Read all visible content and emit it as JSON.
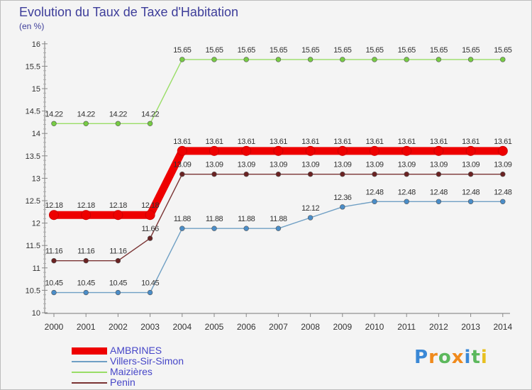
{
  "title": "Evolution du Taux de Taxe d'Habitation",
  "subtitle": "(en %)",
  "chart_data": {
    "type": "line",
    "x": [
      "2000",
      "2001",
      "2002",
      "2003",
      "2004",
      "2005",
      "2006",
      "2007",
      "2008",
      "2009",
      "2010",
      "2011",
      "2012",
      "2013",
      "2014"
    ],
    "y_ticks": [
      "10",
      "10.5",
      "11",
      "11.5",
      "12",
      "12.5",
      "13",
      "13.5",
      "14",
      "14.5",
      "15",
      "15.5",
      "16"
    ],
    "ylim": [
      10,
      16
    ],
    "grid": false,
    "legend_position": "bottom-left",
    "series": [
      {
        "name": "AMBRINES",
        "color": "#ee0000",
        "emphasis": true,
        "values": [
          12.18,
          12.18,
          12.18,
          12.18,
          13.61,
          13.61,
          13.61,
          13.61,
          13.61,
          13.61,
          13.61,
          13.61,
          13.61,
          13.61,
          13.61
        ],
        "labels": [
          "12.18",
          "12.18",
          "12.18",
          "12.18",
          "13.61",
          "13.61",
          "13.61",
          "13.61",
          "13.61",
          "13.61",
          "13.61",
          "13.61",
          "13.61",
          "13.61",
          "13.61"
        ]
      },
      {
        "name": "Villers-Sir-Simon",
        "color": "#6f9fc4",
        "marker": "#4a8dc8",
        "values": [
          10.45,
          10.45,
          10.45,
          10.45,
          11.88,
          11.88,
          11.88,
          11.88,
          12.12,
          12.36,
          12.48,
          12.48,
          12.48,
          12.48,
          12.48
        ],
        "labels": [
          "10.45",
          "10.45",
          "10.45",
          "10.45",
          "11.88",
          "11.88",
          "11.88",
          "11.88",
          "12.12",
          "12.36",
          "12.48",
          "12.48",
          "12.48",
          "12.48",
          "12.48"
        ]
      },
      {
        "name": "Maizières",
        "color": "#99dd66",
        "marker": "#77cc44",
        "values": [
          14.22,
          14.22,
          14.22,
          14.22,
          15.65,
          15.65,
          15.65,
          15.65,
          15.65,
          15.65,
          15.65,
          15.65,
          15.65,
          15.65,
          15.65
        ],
        "labels": [
          "14.22",
          "14.22",
          "14.22",
          "14.22",
          "15.65",
          "15.65",
          "15.65",
          "15.65",
          "15.65",
          "15.65",
          "15.65",
          "15.65",
          "15.65",
          "15.65",
          "15.65"
        ]
      },
      {
        "name": "Penin",
        "color": "#7a3333",
        "marker": "#6a2222",
        "values": [
          11.16,
          11.16,
          11.16,
          11.66,
          13.09,
          13.09,
          13.09,
          13.09,
          13.09,
          13.09,
          13.09,
          13.09,
          13.09,
          13.09,
          13.09
        ],
        "labels": [
          "11.16",
          "11.16",
          "11.16",
          "11.66",
          "13.09",
          "13.09",
          "13.09",
          "13.09",
          "13.09",
          "13.09",
          "13.09",
          "13.09",
          "13.09",
          "13.09",
          "13.09"
        ]
      }
    ]
  },
  "logo": {
    "letters": [
      "P",
      "r",
      "o",
      "x",
      "i",
      "t",
      "i"
    ],
    "colors": [
      "#3a88d6",
      "#f08a1c",
      "#5cb85c",
      "#f08a1c",
      "#3a88d6",
      "#5cb85c",
      "#e8c020"
    ]
  }
}
